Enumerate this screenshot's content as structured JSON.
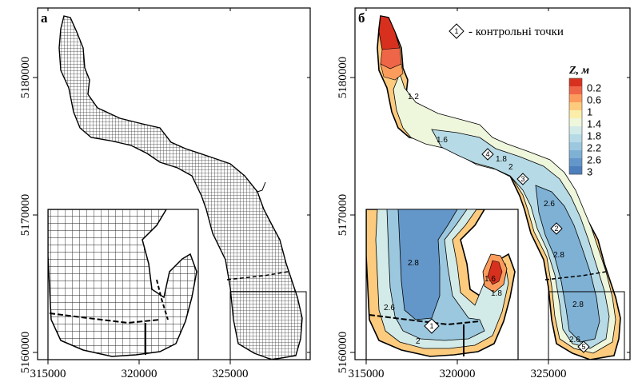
{
  "panels": [
    {
      "id": "a",
      "letter": "а"
    },
    {
      "id": "b",
      "letter": "б"
    }
  ],
  "x_ticks": [
    "315000",
    "320000",
    "325000"
  ],
  "y_ticks": [
    "5160000",
    "5170000",
    "5180000"
  ],
  "legend": {
    "title": "Z, м",
    "labels": [
      "0.2",
      "0.6",
      "1",
      "1.4",
      "1.8",
      "2.2",
      "2.6",
      "3"
    ],
    "colors": [
      "#d7301f",
      "#ef6548",
      "#fc9c5c",
      "#fdcb7e",
      "#fbeeaa",
      "#eef6dc",
      "#d3ebe8",
      "#b7dbe6",
      "#9cc8df",
      "#7fb1d5",
      "#6497c9",
      "#4d7fbd"
    ]
  },
  "note": {
    "marker": "1",
    "text": "- контрольні точки"
  },
  "control_points": [
    "1",
    "2",
    "3",
    "4",
    "5"
  ],
  "contour_labels": {
    "main": [
      "1.2",
      "1.6",
      "1.8",
      "2",
      "2.6",
      "2.8",
      "2.8",
      "2.6"
    ],
    "inset": [
      "2.8",
      "1.6",
      "1.8",
      "2.6",
      "2"
    ]
  }
}
